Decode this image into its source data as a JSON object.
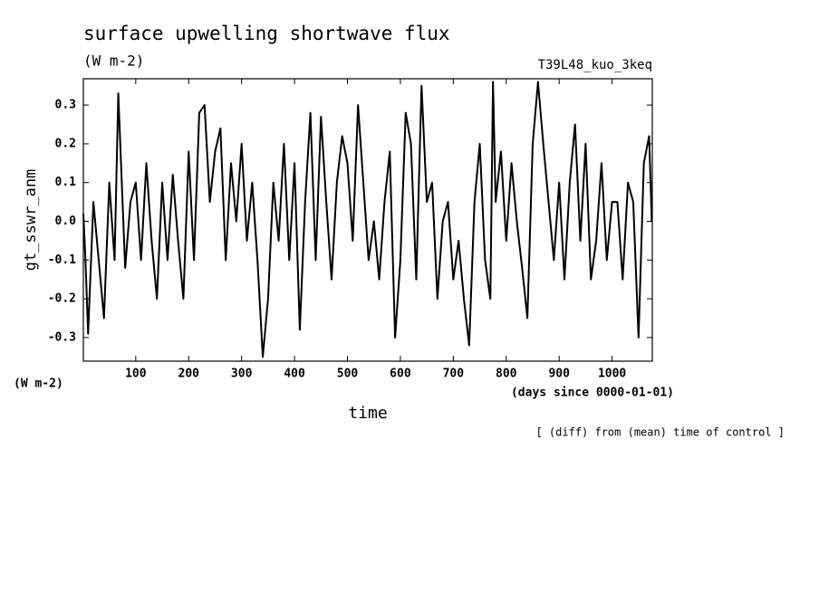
{
  "chart_data": {
    "type": "line",
    "title": "surface upwelling shortwave flux",
    "subtitle": "(W m-2)",
    "annotation": "T39L48_kuo_3keq",
    "y_label": "gt_sswr_anm",
    "y_unit": "(W m-2)",
    "x_label": "time",
    "x_unit": "(days since 0000-01-01)",
    "note": "[ (diff) from (mean) time of control ]",
    "xlim": [
      1,
      1076
    ],
    "ylim": [
      -0.361,
      0.368
    ],
    "xticks": [
      100,
      200,
      300,
      400,
      500,
      600,
      700,
      800,
      900,
      1000
    ],
    "yticks": [
      0.3,
      0.2,
      0.1,
      {
        "value": 0,
        "label": "0.0"
      },
      -0.1,
      -0.2,
      -0.3
    ],
    "series": [
      {
        "color": "#000000",
        "x": [
          1,
          5,
          10,
          20,
          30,
          40,
          50,
          60,
          67,
          80,
          90,
          100,
          110,
          120,
          130,
          140,
          150,
          160,
          170,
          180,
          190,
          200,
          210,
          220,
          230,
          240,
          250,
          260,
          270,
          280,
          290,
          300,
          310,
          320,
          330,
          340,
          350,
          360,
          370,
          380,
          390,
          400,
          410,
          420,
          430,
          440,
          450,
          460,
          470,
          480,
          490,
          500,
          510,
          520,
          530,
          540,
          550,
          560,
          570,
          580,
          590,
          600,
          610,
          620,
          630,
          640,
          650,
          660,
          670,
          680,
          690,
          700,
          710,
          720,
          730,
          740,
          750,
          760,
          770,
          775,
          780,
          790,
          800,
          810,
          820,
          830,
          840,
          850,
          860,
          870,
          880,
          890,
          900,
          910,
          920,
          930,
          940,
          950,
          960,
          970,
          980,
          990,
          1000,
          1010,
          1020,
          1030,
          1040,
          1050,
          1060,
          1070,
          1075
        ],
        "values": [
          0.02,
          -0.1,
          -0.29,
          0.05,
          -0.1,
          -0.25,
          0.1,
          -0.1,
          0.33,
          -0.12,
          0.05,
          0.1,
          -0.1,
          0.15,
          -0.05,
          -0.2,
          0.1,
          -0.1,
          0.12,
          -0.05,
          -0.2,
          0.18,
          -0.1,
          0.28,
          0.3,
          0.05,
          0.18,
          0.24,
          -0.1,
          0.15,
          0.0,
          0.2,
          -0.05,
          0.1,
          -0.1,
          -0.35,
          -0.2,
          0.1,
          -0.05,
          0.2,
          -0.1,
          0.15,
          -0.28,
          0.05,
          0.28,
          -0.1,
          0.27,
          0.05,
          -0.15,
          0.1,
          0.22,
          0.15,
          -0.05,
          0.3,
          0.1,
          -0.1,
          0.0,
          -0.15,
          0.05,
          0.18,
          -0.3,
          -0.1,
          0.28,
          0.2,
          -0.15,
          0.35,
          0.05,
          0.1,
          -0.2,
          0.0,
          0.05,
          -0.15,
          -0.05,
          -0.2,
          -0.32,
          0.05,
          0.2,
          -0.1,
          -0.2,
          0.36,
          0.05,
          0.18,
          -0.05,
          0.15,
          0.0,
          -0.12,
          -0.25,
          0.2,
          0.36,
          0.2,
          0.05,
          -0.1,
          0.1,
          -0.15,
          0.1,
          0.25,
          -0.05,
          0.2,
          -0.15,
          -0.05,
          0.15,
          -0.1,
          0.05,
          0.05,
          -0.15,
          0.1,
          0.05,
          -0.3,
          0.15,
          0.22,
          0.0
        ]
      }
    ]
  }
}
